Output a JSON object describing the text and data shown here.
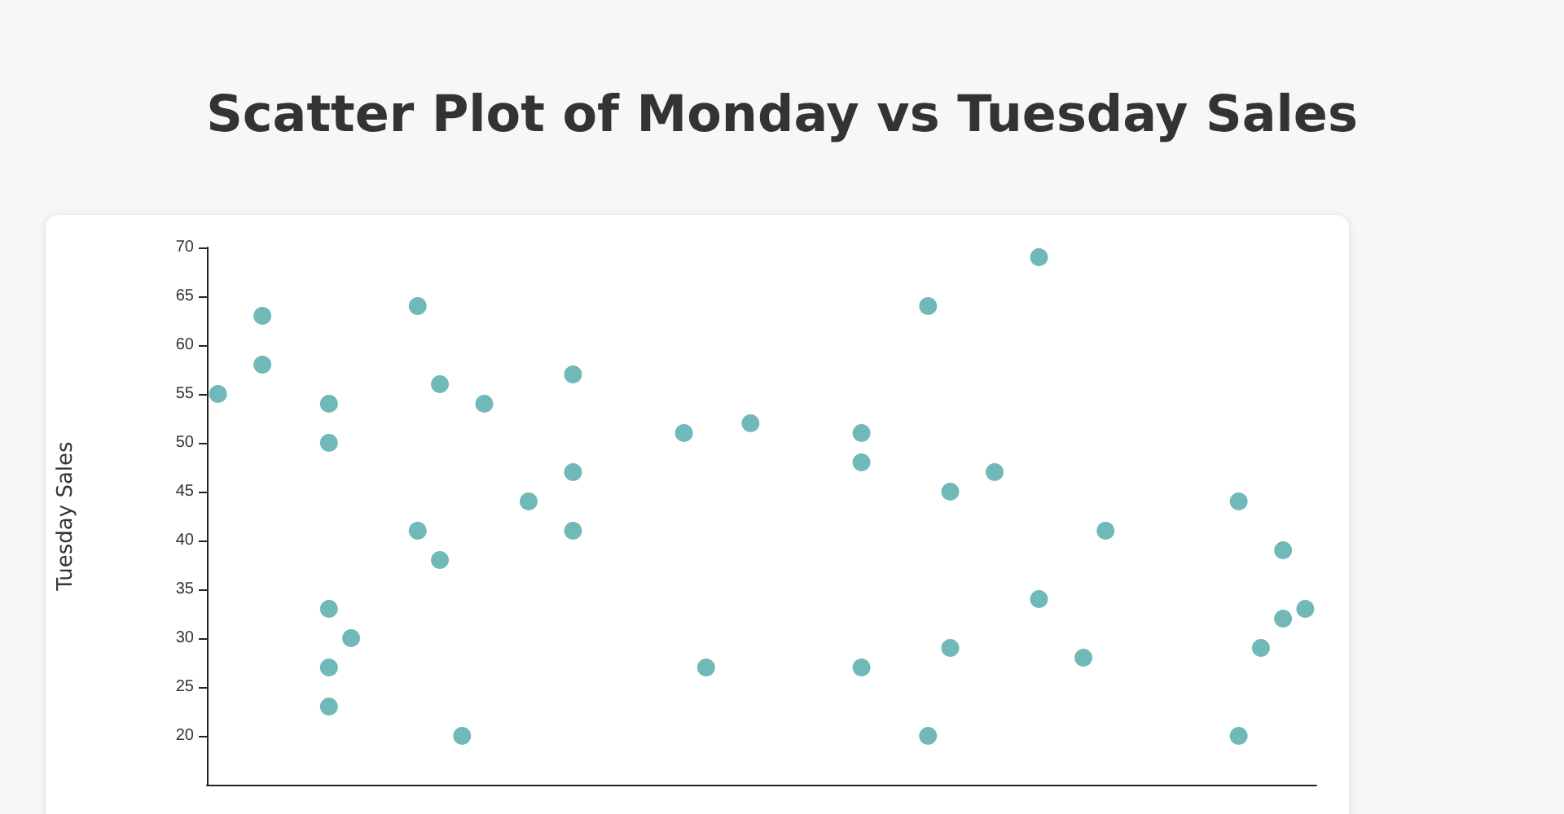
{
  "chart_data": {
    "type": "scatter",
    "title": "Scatter Plot of Monday vs Tuesday Sales",
    "ylabel": "Tuesday Sales",
    "categories": [
      null,
      null,
      null,
      null,
      null,
      null,
      null,
      null,
      null,
      null,
      null,
      null,
      null,
      null,
      null,
      null,
      null,
      null,
      null,
      null,
      null,
      null,
      null,
      null,
      null,
      null,
      null,
      null,
      null,
      null,
      null,
      null,
      null,
      null,
      null,
      null,
      null,
      null,
      null,
      null,
      null,
      null,
      null,
      null,
      null,
      null,
      null,
      null,
      null,
      null
    ],
    "series": [
      {
        "color": "#4ea8a7",
        "values": [
          55,
          null,
          63,
          null,
          null,
          54,
          30,
          null,
          null,
          64,
          56,
          20,
          54,
          null,
          44,
          null,
          57,
          null,
          null,
          null,
          null,
          51,
          27,
          null,
          52,
          null,
          null,
          null,
          null,
          51,
          null,
          null,
          64,
          45,
          null,
          47,
          null,
          69,
          null,
          28,
          41,
          null,
          null,
          null,
          null,
          null,
          44,
          29,
          39,
          33
        ]
      },
      {
        "color": "#4ea8a7",
        "values": [
          null,
          null,
          58,
          null,
          null,
          50,
          null,
          null,
          null,
          41,
          38,
          null,
          null,
          null,
          null,
          null,
          47,
          null,
          null,
          null,
          null,
          null,
          null,
          null,
          null,
          null,
          null,
          null,
          null,
          48,
          null,
          null,
          20,
          29,
          null,
          null,
          null,
          34,
          null,
          null,
          null,
          null,
          null,
          null,
          null,
          null,
          20,
          null,
          32,
          null
        ]
      },
      {
        "color": "#4ea8a7",
        "values": [
          null,
          null,
          null,
          null,
          null,
          33,
          null,
          null,
          null,
          null,
          null,
          null,
          null,
          null,
          null,
          null,
          41,
          null,
          null,
          null,
          null,
          null,
          null,
          null,
          null,
          null,
          null,
          null,
          null,
          27,
          null,
          null,
          null,
          null,
          null,
          null,
          null,
          null,
          null,
          null,
          null,
          null,
          null,
          null,
          null,
          null,
          null,
          null,
          null,
          null
        ]
      },
      {
        "color": "#4ea8a7",
        "values": [
          null,
          null,
          null,
          null,
          null,
          27,
          null,
          null,
          null,
          null,
          null,
          null,
          null,
          null,
          null,
          null,
          null,
          null,
          null,
          null,
          null,
          null,
          null,
          null,
          null,
          null,
          null,
          null,
          null,
          null,
          null,
          null,
          null,
          null,
          null,
          null,
          null,
          null,
          null,
          null,
          null,
          null,
          null,
          null,
          null,
          null,
          null,
          null,
          null,
          null
        ]
      },
      {
        "color": "#4ea8a7",
        "values": [
          null,
          null,
          null,
          null,
          null,
          23,
          null,
          null,
          null,
          null,
          null,
          null,
          null,
          null,
          null,
          null,
          null,
          null,
          null,
          null,
          null,
          null,
          null,
          null,
          null,
          null,
          null,
          null,
          null,
          null,
          null,
          null,
          null,
          null,
          null,
          null,
          null,
          null,
          null,
          null,
          null,
          null,
          null,
          null,
          null,
          null,
          null,
          null,
          null,
          null
        ]
      }
    ],
    "ylim": [
      15,
      70
    ],
    "yticks": [
      20,
      25,
      30,
      35,
      40,
      45,
      50,
      55,
      60,
      65,
      70
    ],
    "grid": false,
    "marker": "circle"
  }
}
